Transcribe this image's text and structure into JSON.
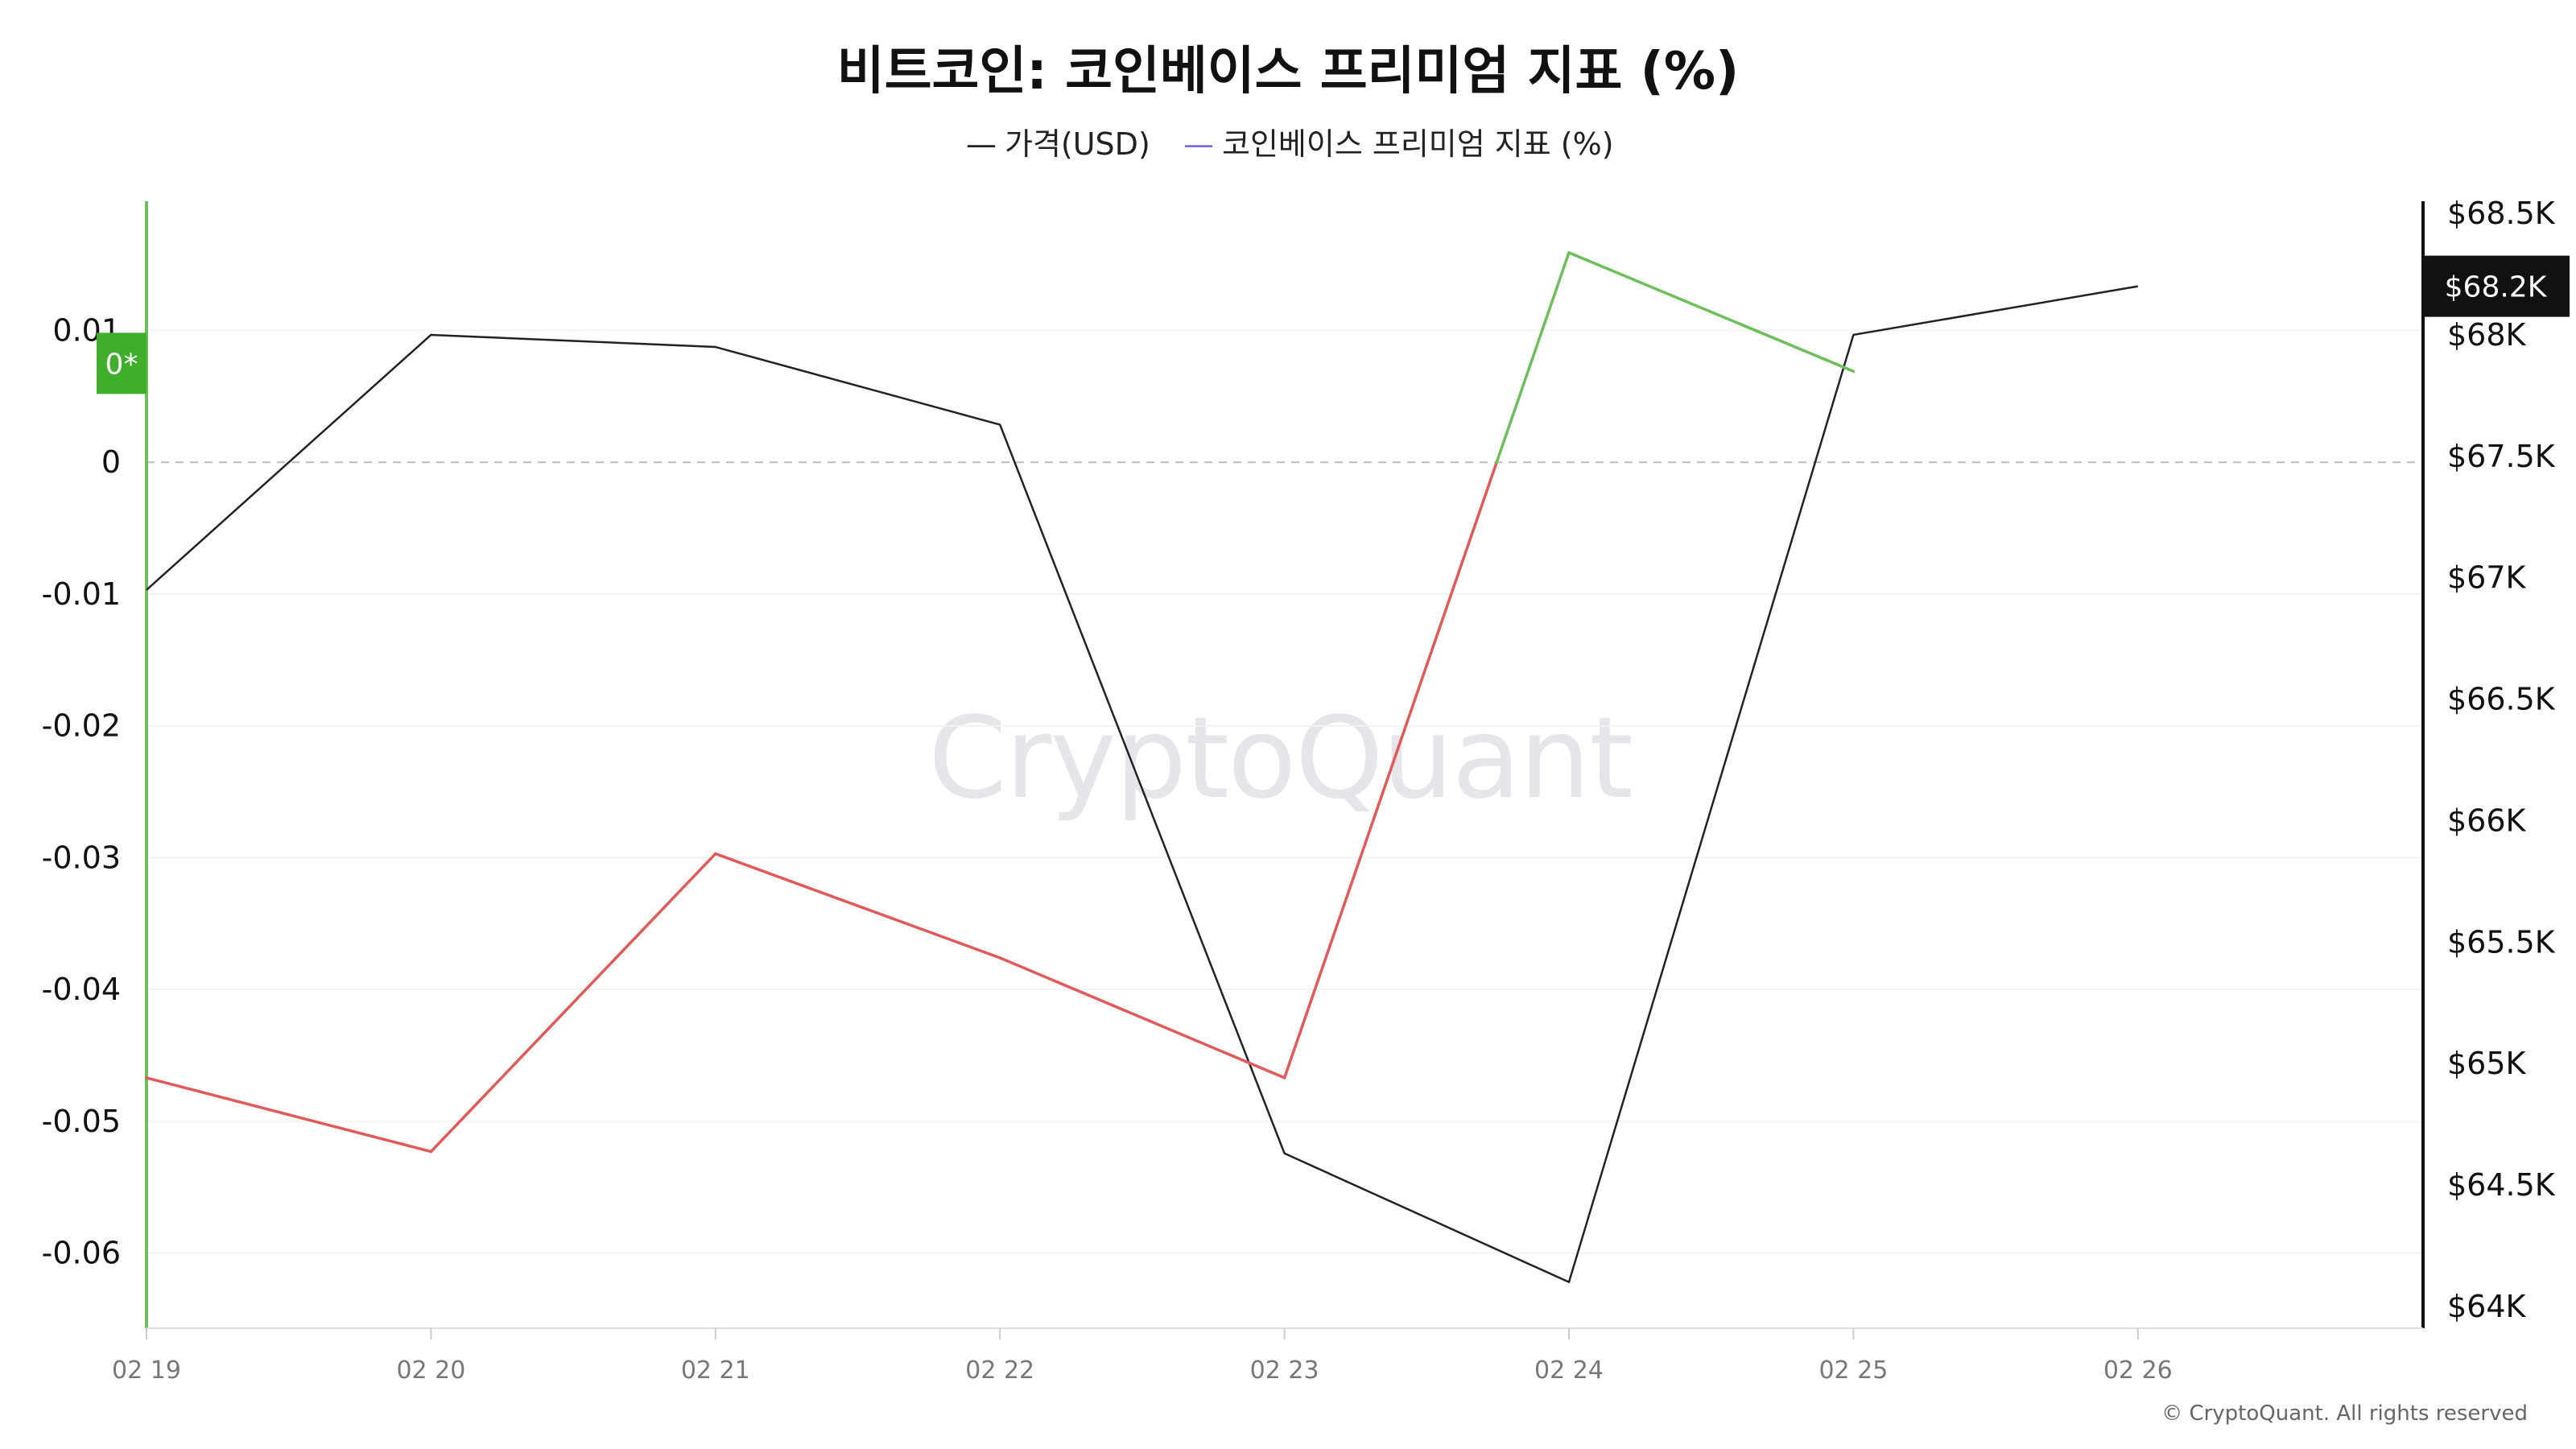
{
  "title": "비트코인: 코인베이스 프리미엄 지표 (%)",
  "legend": [
    {
      "label": "가격(USD)",
      "color": "#222222",
      "marker": "—"
    },
    {
      "label": "코인베이스 프리미엄 지표 (%)",
      "color": "#7b6fd6",
      "marker": "—"
    }
  ],
  "watermark": "CryptoQuant",
  "copyright": "© CryptoQuant. All rights reserved",
  "colors": {
    "price_line": "#222222",
    "premium_positive": "#6cbf5a",
    "premium_negative": "#e05a5a",
    "left_axis_line": "#6cbf5a",
    "right_axis_line": "#111111",
    "zero_line": "#bbbbbb",
    "grid": "#f2f2f2",
    "badge_left_bg": "#3fae2a",
    "badge_right_bg": "#111111"
  },
  "badges": {
    "left": {
      "label": "0*",
      "value": 0.0075
    },
    "right": {
      "label": "$68.2K",
      "value": 68200
    }
  },
  "chart_data": {
    "type": "line",
    "title": "비트코인: 코인베이스 프리미엄 지표 (%)",
    "x": [
      "02 19",
      "02 20",
      "02 21",
      "02 22",
      "02 23",
      "02 24",
      "02 25",
      "02 26"
    ],
    "x_tick_labels": [
      "02 19",
      "02 20",
      "02 21",
      "02 22",
      "02 23",
      "02 24",
      "02 25",
      "02 26"
    ],
    "series": [
      {
        "name": "가격(USD)",
        "axis": "right",
        "values": [
          66950,
          68000,
          67950,
          67630,
          64630,
          64100,
          68000,
          68200
        ]
      },
      {
        "name": "코인베이스 프리미엄 지표 (%)",
        "axis": "left",
        "values": [
          -0.0467,
          -0.0523,
          -0.0297,
          -0.0376,
          -0.0467,
          0.0159,
          0.0069,
          null
        ]
      }
    ],
    "left_axis": {
      "ticks": [
        0.01,
        0,
        -0.01,
        -0.02,
        -0.03,
        -0.04,
        -0.05,
        -0.06
      ],
      "tick_labels": [
        "0.01",
        "0",
        "-0.01",
        "-0.02",
        "-0.03",
        "-0.04",
        "-0.05",
        "-0.06"
      ],
      "ylim": [
        -0.0657,
        0.0198
      ]
    },
    "right_axis": {
      "ticks": [
        68500,
        68000,
        67500,
        67000,
        66500,
        66000,
        65500,
        65000,
        64500,
        64000
      ],
      "tick_labels": [
        "$68.5K",
        "$68K",
        "$67.5K",
        "$67K",
        "$66.5K",
        "$66K",
        "$65.5K",
        "$65K",
        "$64.5K",
        "$64K"
      ],
      "ylim": [
        63910,
        68550
      ]
    },
    "zero_line": true,
    "grid": true,
    "legend_position": "top-center"
  }
}
